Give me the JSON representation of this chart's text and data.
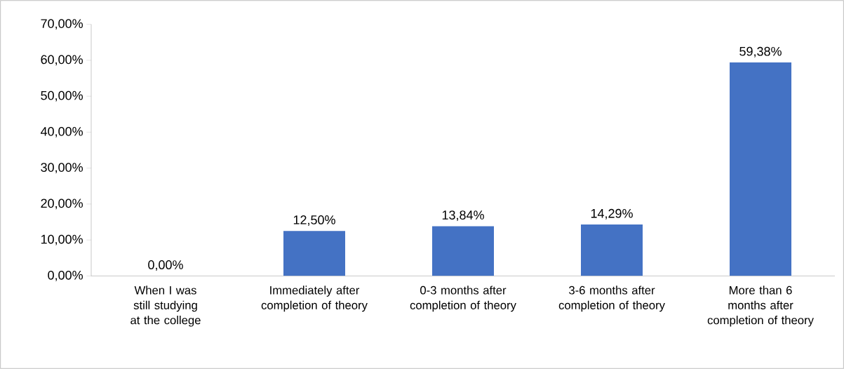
{
  "chart_data": {
    "type": "bar",
    "categories": [
      "When I was still studying at the college",
      "Immediately after completion of theory",
      "0-3 months after completion of theory",
      "3-6 months after completion of theory",
      "More than 6 months after completion of theory"
    ],
    "values": [
      0,
      12.5,
      13.84,
      14.29,
      59.38
    ],
    "value_labels": [
      "0,00%",
      "12,50%",
      "13,84%",
      "14,29%",
      "59,38%"
    ],
    "color": "#4472c4",
    "ylim": [
      0,
      70
    ],
    "yticks": [
      {
        "value": 0,
        "label": "0,00%"
      },
      {
        "value": 10,
        "label": "10,00%"
      },
      {
        "value": 20,
        "label": "20,00%"
      },
      {
        "value": 30,
        "label": "30,00%"
      },
      {
        "value": 40,
        "label": "40,00%"
      },
      {
        "value": 50,
        "label": "50,00%"
      },
      {
        "value": 60,
        "label": "60,00%"
      },
      {
        "value": 70,
        "label": "70,00%"
      }
    ],
    "grid": false
  }
}
